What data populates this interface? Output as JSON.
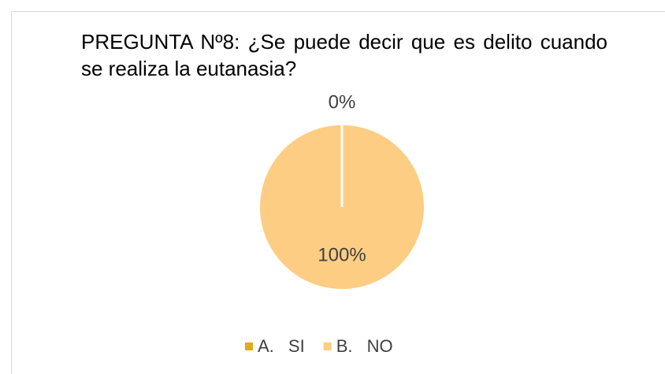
{
  "chart_data": {
    "type": "pie",
    "title": "PREGUNTA Nº8: ¿Se puede decir que es delito cuando se realiza la eutanasia?",
    "categories": [
      "A. SI",
      "B. NO"
    ],
    "values": [
      0,
      100
    ],
    "value_labels": [
      "0%",
      "100%"
    ],
    "colors": [
      "#e3aa1b",
      "#fdcd84"
    ],
    "legend": "bottom"
  }
}
